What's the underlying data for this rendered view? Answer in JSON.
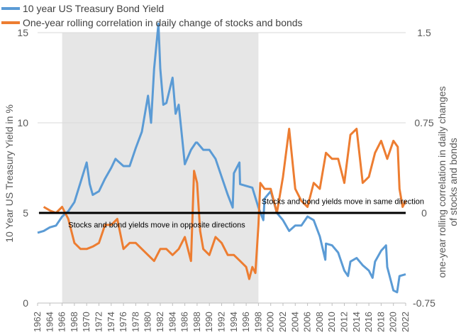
{
  "chart_data": {
    "type": "line",
    "legend": [
      {
        "label": "10 year US Treasury Bond Yield",
        "color": "#5b9bd5"
      },
      {
        "label": "One-year rolling correlation in daily change of stocks and bonds",
        "color": "#ed7d31"
      }
    ],
    "legend_position": "top-left",
    "y_left": {
      "label": "10 Year US Treasury Yield in %",
      "range": [
        0,
        15
      ],
      "ticks": [
        "0",
        "5",
        "10",
        "15"
      ]
    },
    "y_right": {
      "label_lines": [
        "one-year rolling correlation in daily changes",
        "of stocks and bonds"
      ],
      "range": [
        -0.75,
        1.5
      ],
      "ticks": [
        "-0.75",
        "0",
        "0.75",
        "1.5"
      ]
    },
    "x": {
      "range": [
        1962,
        2022
      ],
      "ticks": [
        "1962",
        "1964",
        "1966",
        "1968",
        "1970",
        "1972",
        "1974",
        "1976",
        "1978",
        "1980",
        "1982",
        "1984",
        "1986",
        "1988",
        "1990",
        "1992",
        "1994",
        "1996",
        "1998",
        "2000",
        "2002",
        "2004",
        "2006",
        "2008",
        "2010",
        "2012",
        "2014",
        "2016",
        "2018",
        "2020",
        "2022"
      ]
    },
    "shaded_region": {
      "from": 1966,
      "to": 1998,
      "color": "#e6e6e6"
    },
    "zero_line": {
      "value": 0,
      "axis": "right",
      "color": "#000000"
    },
    "annotations": [
      {
        "text": "Stocks and bond yields move in opposite directions",
        "x": 1967,
        "y_right": -0.05
      },
      {
        "text": "Stocks and bond yields move in same direction",
        "x": 1998.5,
        "y_right": 0.05
      }
    ],
    "gridlines": true,
    "series": [
      {
        "name": "10 year US Treasury Bond Yield",
        "axis": "left",
        "color": "#5b9bd5",
        "x": [
          1962,
          1963,
          1964,
          1965,
          1966,
          1967,
          1968,
          1969,
          1970,
          1970.5,
          1971,
          1972,
          1973,
          1974,
          1974.7,
          1975,
          1976,
          1977,
          1978,
          1979,
          1980,
          1980.5,
          1981,
          1981.7,
          1982,
          1982.5,
          1983,
          1984,
          1984.5,
          1985,
          1986,
          1987,
          1987.8,
          1988,
          1989,
          1990,
          1991,
          1992,
          1993,
          1993.8,
          1994,
          1994.9,
          1995,
          1996,
          1997,
          1998,
          1998.8,
          1999,
          2000,
          2001,
          2002,
          2003,
          2004,
          2005,
          2006,
          2007,
          2008,
          2008.9,
          2009,
          2010,
          2011,
          2012,
          2012.6,
          2013,
          2014,
          2015,
          2016,
          2016.6,
          2017,
          2018,
          2018.8,
          2019,
          2020,
          2020.6,
          2021,
          2022
        ],
        "values": [
          3.9,
          4.0,
          4.2,
          4.3,
          4.8,
          5.1,
          5.6,
          6.7,
          7.8,
          6.6,
          6.0,
          6.2,
          6.9,
          7.5,
          8.0,
          7.9,
          7.6,
          7.6,
          8.6,
          9.5,
          11.5,
          10.0,
          13.0,
          15.5,
          13.0,
          11.0,
          11.1,
          12.5,
          10.5,
          11.0,
          7.7,
          8.5,
          8.9,
          8.9,
          8.5,
          8.5,
          8.0,
          7.0,
          6.0,
          5.3,
          7.2,
          7.8,
          6.6,
          6.5,
          6.4,
          5.3,
          4.6,
          5.8,
          6.2,
          5.0,
          4.6,
          4.0,
          4.3,
          4.3,
          4.8,
          4.6,
          3.7,
          2.4,
          3.3,
          3.2,
          2.8,
          1.8,
          1.5,
          2.3,
          2.5,
          2.1,
          1.8,
          1.4,
          2.3,
          2.9,
          3.2,
          2.0,
          0.7,
          0.6,
          1.5,
          1.6
        ]
      },
      {
        "name": "One-year rolling correlation in daily change of stocks and bonds",
        "axis": "right",
        "color": "#ed7d31",
        "x": [
          1963,
          1964,
          1965,
          1966,
          1967,
          1968,
          1969,
          1970,
          1971,
          1972,
          1973,
          1974,
          1975,
          1976,
          1977,
          1978,
          1979,
          1980,
          1981,
          1982,
          1983,
          1984,
          1985,
          1986,
          1987,
          1987.5,
          1988,
          1988.5,
          1989,
          1990,
          1991,
          1992,
          1993,
          1994,
          1995,
          1996,
          1996.5,
          1997,
          1997.5,
          1998,
          1998.3,
          1999,
          2000,
          2001,
          2002,
          2003,
          2004,
          2005,
          2006,
          2007,
          2008,
          2009,
          2010,
          2011,
          2012,
          2013,
          2014,
          2015,
          2016,
          2017,
          2018,
          2019,
          2020,
          2020.7,
          2021,
          2021.5,
          2022
        ],
        "values": [
          0.05,
          0.02,
          0.0,
          0.05,
          -0.05,
          -0.25,
          -0.3,
          -0.3,
          -0.28,
          -0.25,
          -0.1,
          -0.1,
          -0.05,
          -0.3,
          -0.25,
          -0.25,
          -0.3,
          -0.35,
          -0.4,
          -0.3,
          -0.3,
          -0.35,
          -0.3,
          -0.2,
          -0.4,
          0.35,
          0.25,
          -0.15,
          -0.3,
          -0.35,
          -0.2,
          -0.25,
          -0.35,
          -0.35,
          -0.4,
          -0.45,
          -0.55,
          -0.45,
          -0.5,
          -0.1,
          0.25,
          0.2,
          0.2,
          0.0,
          0.3,
          0.7,
          0.2,
          0.1,
          0.05,
          0.25,
          0.2,
          0.5,
          0.45,
          0.45,
          0.25,
          0.65,
          0.7,
          0.25,
          0.3,
          0.5,
          0.6,
          0.45,
          0.6,
          0.55,
          0.2,
          0.05,
          0.1
        ]
      }
    ]
  }
}
